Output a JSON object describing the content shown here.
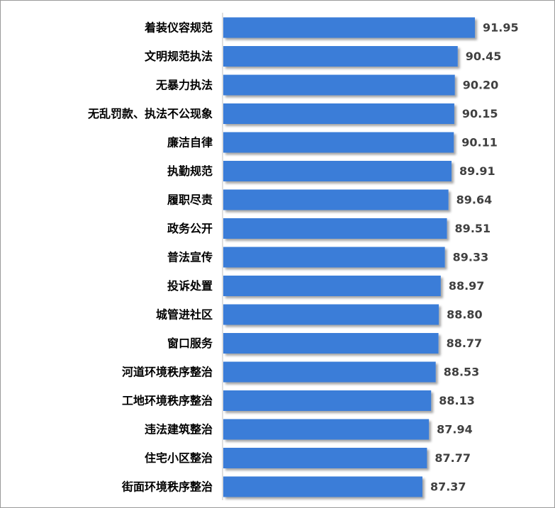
{
  "chart_data": {
    "type": "bar",
    "orientation": "horizontal",
    "categories": [
      "着装仪容规范",
      "文明规范执法",
      "无暴力执法",
      "无乱罚款、执法不公现象",
      "廉洁自律",
      "执勤规范",
      "履职尽责",
      "政务公开",
      "普法宣传",
      "投诉处置",
      "城管进社区",
      "窗口服务",
      "河道环境秩序整治",
      "工地环境秩序整治",
      "违法建筑整治",
      "住宅小区整治",
      "街面环境秩序整治"
    ],
    "values": [
      91.95,
      90.45,
      90.2,
      90.15,
      90.11,
      89.91,
      89.64,
      89.51,
      89.33,
      88.97,
      88.8,
      88.77,
      88.53,
      88.13,
      87.94,
      87.77,
      87.37
    ],
    "value_labels": [
      "91.95",
      "90.45",
      "90.20",
      "90.15",
      "90.11",
      "89.91",
      "89.64",
      "89.51",
      "89.33",
      "88.97",
      "88.80",
      "88.77",
      "88.53",
      "88.13",
      "87.94",
      "87.77",
      "87.37"
    ],
    "xlim": [
      70,
      93
    ],
    "grid": false,
    "legend": "none",
    "bar_color": "#3b7dd8",
    "title": "",
    "xlabel": "",
    "ylabel": ""
  }
}
